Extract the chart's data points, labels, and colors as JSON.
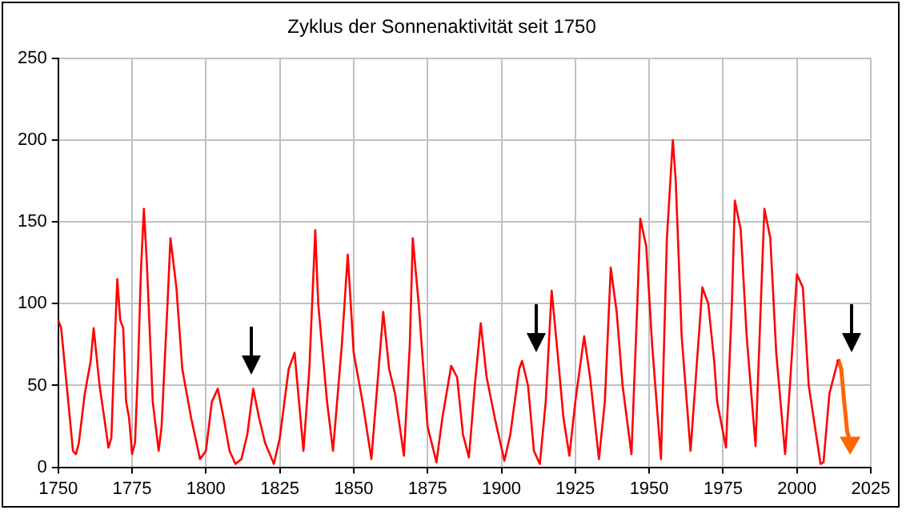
{
  "chart_data": {
    "type": "line",
    "title": "Zyklus der Sonnenaktivität seit 1750",
    "xlim": [
      1750,
      2025
    ],
    "xticks": [
      1750,
      1775,
      1800,
      1825,
      1850,
      1875,
      1900,
      1925,
      1950,
      1975,
      2000,
      2025
    ],
    "ylim": [
      0,
      250
    ],
    "yticks": [
      0,
      50,
      100,
      150,
      200,
      250
    ],
    "grid": true,
    "legend": false,
    "marker": "none",
    "series": [
      {
        "color": "#ff0000",
        "x": [
          1750,
          1751,
          1753,
          1755,
          1756,
          1757,
          1759,
          1761,
          1762,
          1764,
          1766,
          1767,
          1768,
          1769,
          1770,
          1771,
          1772,
          1773,
          1774,
          1775,
          1776,
          1777,
          1778,
          1779,
          1780,
          1782,
          1784,
          1785,
          1787,
          1788,
          1790,
          1792,
          1795,
          1798,
          1800,
          1802,
          1804,
          1806,
          1808,
          1810,
          1812,
          1814,
          1816,
          1818,
          1820,
          1823,
          1825,
          1828,
          1830,
          1833,
          1835,
          1837,
          1838,
          1841,
          1843,
          1846,
          1848,
          1850,
          1853,
          1856,
          1858,
          1860,
          1862,
          1864,
          1867,
          1869,
          1870,
          1872,
          1875,
          1878,
          1880,
          1883,
          1885,
          1887,
          1889,
          1891,
          1893,
          1895,
          1898,
          1901,
          1903,
          1906,
          1907,
          1909,
          1911,
          1913,
          1915,
          1917,
          1919,
          1921,
          1923,
          1925,
          1928,
          1930,
          1933,
          1935,
          1937,
          1939,
          1941,
          1944,
          1946,
          1947,
          1949,
          1951,
          1954,
          1956,
          1958,
          1959,
          1961,
          1964,
          1966,
          1968,
          1970,
          1972,
          1973,
          1976,
          1978,
          1979,
          1981,
          1983,
          1986,
          1988,
          1989,
          1991,
          1993,
          1996,
          1998,
          2000,
          2002,
          2004,
          2008,
          2009,
          2011,
          2014
        ],
        "values": [
          90,
          85,
          48,
          10,
          8,
          15,
          45,
          65,
          85,
          50,
          25,
          12,
          18,
          70,
          115,
          90,
          85,
          40,
          30,
          8,
          15,
          60,
          120,
          158,
          125,
          40,
          10,
          25,
          100,
          140,
          110,
          60,
          30,
          5,
          10,
          40,
          48,
          30,
          10,
          2,
          5,
          20,
          48,
          30,
          15,
          2,
          18,
          60,
          70,
          10,
          60,
          145,
          100,
          40,
          10,
          75,
          130,
          70,
          40,
          5,
          50,
          95,
          60,
          45,
          7,
          75,
          140,
          100,
          25,
          3,
          30,
          62,
          55,
          20,
          6,
          50,
          88,
          55,
          28,
          4,
          20,
          60,
          65,
          50,
          10,
          2,
          40,
          108,
          70,
          30,
          7,
          40,
          80,
          55,
          5,
          40,
          122,
          95,
          50,
          8,
          100,
          152,
          135,
          75,
          5,
          140,
          200,
          175,
          80,
          10,
          60,
          110,
          100,
          65,
          40,
          12,
          100,
          163,
          145,
          80,
          13,
          110,
          158,
          140,
          70,
          8,
          60,
          118,
          110,
          50,
          2,
          3,
          45,
          66
        ]
      },
      {
        "color": "#ff6600",
        "x": [
          2014,
          2015,
          2016,
          2017,
          2018
        ],
        "values": [
          66,
          60,
          40,
          22,
          15
        ]
      }
    ]
  }
}
